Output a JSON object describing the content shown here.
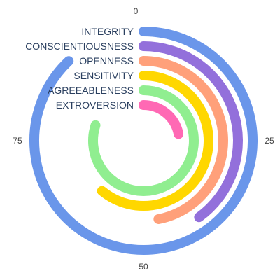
{
  "chart_data": {
    "type": "radial-bar",
    "categories": [
      "INTEGRITY",
      "CONSCIENTIOUSNESS",
      "OPENNESS",
      "SENSITIVITY",
      "AGREEABLENESS",
      "EXTROVERSION"
    ],
    "values": [
      88,
      40,
      47,
      61,
      80,
      22
    ],
    "colors": [
      "#6a96ea",
      "#9370db",
      "#ffa07a",
      "#ffd700",
      "#90ee90",
      "#ff69b4"
    ],
    "max_value": 100,
    "direction": "clockwise",
    "start": "top",
    "ticks": [
      0,
      25,
      50,
      75
    ],
    "tick_labels": [
      "0",
      "25",
      "50",
      "75"
    ],
    "title": ""
  }
}
